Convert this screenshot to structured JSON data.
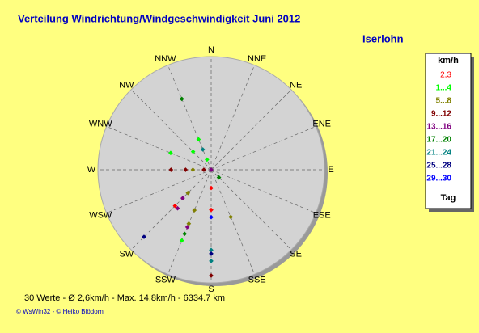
{
  "chart_data": {
    "type": "polar-scatter",
    "title": "Verteilung Windrichtung/Windgeschwindigkeit  Juni 2012",
    "subtitle": "Iserlohn",
    "directions": [
      "N",
      "NNE",
      "NE",
      "ENE",
      "E",
      "ESE",
      "SE",
      "SSE",
      "S",
      "SSW",
      "SW",
      "WSW",
      "W",
      "WNW",
      "NW",
      "NNW"
    ],
    "rlim": [
      0,
      31
    ],
    "legend_title": "km/h",
    "legend_footer": "Tag",
    "series": [
      {
        "name": "2,3",
        "color": "#ff0000",
        "x": [
          180,
          180,
          225
        ],
        "values": [
          5,
          11,
          14
        ]
      },
      {
        "name": "1...4",
        "color": "#00ff00",
        "x": [
          337.5,
          315,
          292.5,
          337.5,
          202.5
        ],
        "values": [
          9,
          7,
          12,
          3,
          21
        ]
      },
      {
        "name": "5...8",
        "color": "#808000",
        "x": [
          270,
          157.5,
          225,
          202.5,
          202.5
        ],
        "values": [
          5,
          14,
          9,
          12,
          16
        ]
      },
      {
        "name": "9...12",
        "color": "#800000",
        "x": [
          270,
          270,
          270,
          180
        ],
        "values": [
          11,
          7,
          2,
          29
        ]
      },
      {
        "name": "13...16",
        "color": "#800080",
        "x": [
          0,
          225,
          221,
          202.5
        ],
        "values": [
          0,
          11,
          14,
          17
        ]
      },
      {
        "name": "17...20",
        "color": "#008000",
        "x": [
          337.5,
          135,
          202.5
        ],
        "values": [
          21,
          3,
          19
        ]
      },
      {
        "name": "21...24",
        "color": "#008080",
        "x": [
          337.5,
          180,
          180
        ],
        "values": [
          6,
          22,
          25
        ]
      },
      {
        "name": "25...28",
        "color": "#000080",
        "x": [
          225,
          180
        ],
        "values": [
          26,
          23
        ]
      },
      {
        "name": "29...30",
        "color": "#0000ff",
        "x": [
          180
        ],
        "values": [
          13
        ]
      }
    ],
    "footer": "30 Werte   -   Ø 2,6km/h   -   Max. 14,8km/h   -   6334.7 km",
    "credits": "© WsWin32  -  © Heiko Blödorn"
  }
}
